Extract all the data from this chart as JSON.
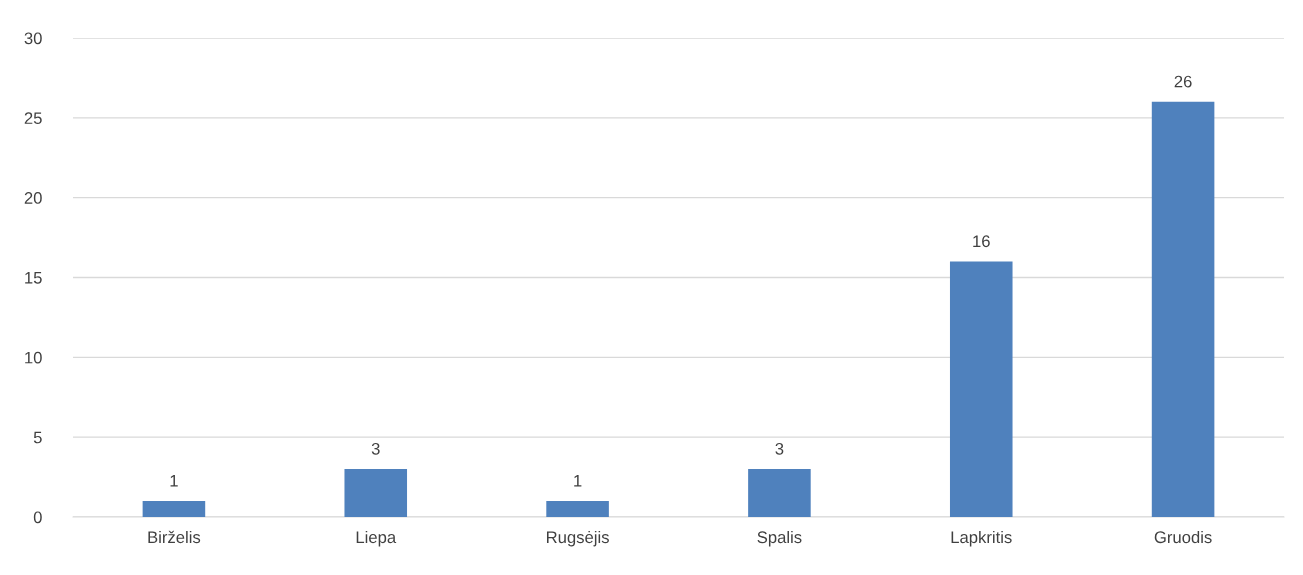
{
  "chart_data": {
    "type": "bar",
    "categories": [
      "Birželis",
      "Liepa",
      "Rugsėjis",
      "Spalis",
      "Lapkritis",
      "Gruodis"
    ],
    "values": [
      1,
      3,
      1,
      3,
      16,
      26
    ],
    "color": "#4f81bd",
    "ylim": [
      0,
      30
    ],
    "yticks": [
      0,
      5,
      10,
      15,
      20,
      25,
      30
    ],
    "grid": "y",
    "data_labels": true
  }
}
